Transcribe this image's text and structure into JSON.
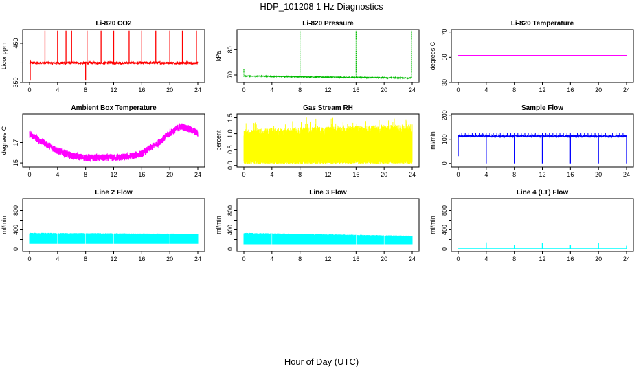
{
  "figure": {
    "title": "HDP_101208  1 Hz Diagnostics",
    "xlabel": "Hour of Day (UTC)"
  },
  "chart_data": [
    {
      "type": "line",
      "title": "Li-820 CO2",
      "ylabel": "Licor ppm",
      "color": "#ff0000",
      "xlim": [
        0,
        24
      ],
      "ylim": [
        350,
        485
      ],
      "xticks": [
        0,
        4,
        8,
        12,
        16,
        20,
        24
      ],
      "yticks": [
        350,
        400,
        450
      ],
      "yticklabels": [
        "350",
        "",
        "450"
      ],
      "baseline": 400,
      "noise": 3,
      "spikes": [
        {
          "x": 0.1,
          "y": 355
        },
        {
          "x": 0.1,
          "y": 408
        },
        {
          "x": 2.2,
          "y": 482
        },
        {
          "x": 4.0,
          "y": 482
        },
        {
          "x": 5.2,
          "y": 482
        },
        {
          "x": 6.0,
          "y": 482
        },
        {
          "x": 8.0,
          "y": 355
        },
        {
          "x": 8.2,
          "y": 482
        },
        {
          "x": 10.2,
          "y": 482
        },
        {
          "x": 12.0,
          "y": 482
        },
        {
          "x": 14.2,
          "y": 482
        },
        {
          "x": 16.0,
          "y": 482
        },
        {
          "x": 18.0,
          "y": 482
        },
        {
          "x": 20.0,
          "y": 482
        },
        {
          "x": 21.8,
          "y": 482
        },
        {
          "x": 23.8,
          "y": 482
        }
      ]
    },
    {
      "type": "line",
      "title": "Li-820 Pressure",
      "ylabel": "kPa",
      "color": "#00bb00",
      "xlim": [
        0,
        24
      ],
      "ylim": [
        67,
        88
      ],
      "xticks": [
        0,
        4,
        8,
        12,
        16,
        20,
        24
      ],
      "yticks": [
        70,
        80
      ],
      "yticklabels": [
        "70",
        "80"
      ],
      "segments": [
        [
          0,
          69.6
        ],
        [
          8,
          69.3
        ],
        [
          16,
          69.0
        ],
        [
          24,
          68.8
        ]
      ],
      "noise": 0.2,
      "spikes": [
        {
          "x": 0.0,
          "y": 72.5
        },
        {
          "x": 8.0,
          "y": 87.5
        },
        {
          "x": 16.0,
          "y": 87.5
        },
        {
          "x": 23.9,
          "y": 87.5
        }
      ]
    },
    {
      "type": "line",
      "title": "Li-820 Temperature",
      "ylabel": "degrees C",
      "color": "#ff00ff",
      "xlim": [
        0,
        24
      ],
      "ylim": [
        30,
        72
      ],
      "xticks": [
        0,
        4,
        8,
        12,
        16,
        20,
        24
      ],
      "yticks": [
        30,
        50,
        70
      ],
      "yticklabels": [
        "30",
        "50",
        "70"
      ],
      "constant": 51.5
    },
    {
      "type": "area",
      "title": "Ambient Box Temperature",
      "ylabel": "degrees C",
      "color": "#ff00ff",
      "xlim": [
        0,
        24
      ],
      "ylim": [
        14.6,
        19.8
      ],
      "xticks": [
        0,
        4,
        8,
        12,
        16,
        20,
        24
      ],
      "yticks": [
        15,
        17
      ],
      "yticklabels": [
        "15",
        "17"
      ],
      "center": [
        {
          "x": 0,
          "y": 17.8
        },
        {
          "x": 2,
          "y": 17.0
        },
        {
          "x": 4,
          "y": 16.2
        },
        {
          "x": 6,
          "y": 15.7
        },
        {
          "x": 8,
          "y": 15.5
        },
        {
          "x": 10,
          "y": 15.5
        },
        {
          "x": 12,
          "y": 15.5
        },
        {
          "x": 14,
          "y": 15.6
        },
        {
          "x": 16,
          "y": 15.9
        },
        {
          "x": 18,
          "y": 16.8
        },
        {
          "x": 20,
          "y": 17.9
        },
        {
          "x": 21.5,
          "y": 18.6
        },
        {
          "x": 22.5,
          "y": 18.4
        },
        {
          "x": 24,
          "y": 17.9
        }
      ],
      "band": 0.35
    },
    {
      "type": "area",
      "title": "Gas Stream RH",
      "ylabel": "percent",
      "color": "#ffff00",
      "xlim": [
        0,
        24
      ],
      "ylim": [
        -0.05,
        1.62
      ],
      "xticks": [
        0,
        4,
        8,
        12,
        16,
        20,
        24
      ],
      "yticks": [
        0.0,
        0.5,
        1.0,
        1.5
      ],
      "yticklabels": [
        "0.0",
        "0.5",
        "1.0",
        "1.5"
      ],
      "low": 0.05,
      "high_start": 1.15,
      "high_end": 1.3,
      "high_peak": 1.52
    },
    {
      "type": "line",
      "title": "Sample Flow",
      "ylabel": "ml/min",
      "color": "#0000ff",
      "xlim": [
        0,
        24
      ],
      "ylim": [
        -15,
        205
      ],
      "xticks": [
        0,
        4,
        8,
        12,
        16,
        20,
        24
      ],
      "yticks": [
        0,
        100,
        200
      ],
      "yticklabels": [
        "0",
        "100",
        "200"
      ],
      "baseline": 113,
      "noise": 4,
      "dips": [
        {
          "x": 0.0,
          "y": 30
        },
        {
          "x": 4.0,
          "y": 0
        },
        {
          "x": 8.0,
          "y": 0
        },
        {
          "x": 12.0,
          "y": 0
        },
        {
          "x": 16.0,
          "y": 0
        },
        {
          "x": 20.0,
          "y": 0
        },
        {
          "x": 24.0,
          "y": 0
        }
      ]
    },
    {
      "type": "area",
      "title": "Line 2 Flow",
      "ylabel": "ml/min",
      "color": "#00ffff",
      "xlim": [
        0,
        24
      ],
      "ylim": [
        -50,
        1050
      ],
      "xticks": [
        0,
        4,
        8,
        12,
        16,
        20,
        24
      ],
      "yticks": [
        0,
        200,
        400,
        600,
        800,
        1000
      ],
      "yticklabels": [
        "0",
        "",
        "400",
        "",
        "800",
        ""
      ],
      "low": 110,
      "high_start": 330,
      "high_end": 310,
      "gaps": [
        4,
        8,
        12,
        16,
        20
      ]
    },
    {
      "type": "area",
      "title": "Line 3 Flow",
      "ylabel": "ml/min",
      "color": "#00ffff",
      "xlim": [
        0,
        24
      ],
      "ylim": [
        -50,
        1050
      ],
      "xticks": [
        0,
        4,
        8,
        12,
        16,
        20,
        24
      ],
      "yticks": [
        0,
        200,
        400,
        600,
        800,
        1000
      ],
      "yticklabels": [
        "0",
        "",
        "400",
        "",
        "800",
        ""
      ],
      "low": 100,
      "high_start": 330,
      "high_end": 270,
      "gaps": [
        4,
        8,
        12,
        16,
        20
      ]
    },
    {
      "type": "line",
      "title": "Line 4 (LT) Flow",
      "ylabel": "ml/min",
      "color": "#00ffff",
      "xlim": [
        0,
        24
      ],
      "ylim": [
        -50,
        1050
      ],
      "xticks": [
        0,
        4,
        8,
        12,
        16,
        20,
        24
      ],
      "yticks": [
        0,
        200,
        400,
        600,
        800,
        1000
      ],
      "yticklabels": [
        "0",
        "",
        "400",
        "",
        "800",
        ""
      ],
      "baseline": 10,
      "spikes": [
        {
          "x": 4.0,
          "y": 140
        },
        {
          "x": 8.0,
          "y": 80
        },
        {
          "x": 12.0,
          "y": 130
        },
        {
          "x": 16.0,
          "y": 80
        },
        {
          "x": 20.0,
          "y": 130
        },
        {
          "x": 24.0,
          "y": 70
        }
      ]
    }
  ]
}
